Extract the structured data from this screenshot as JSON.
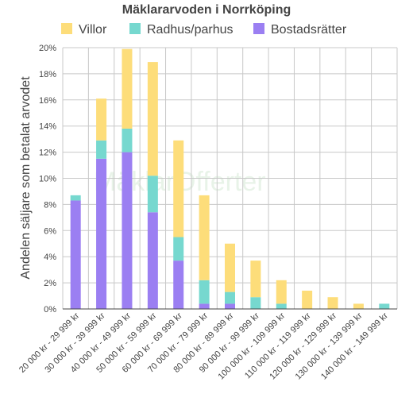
{
  "chart_data": {
    "type": "bar",
    "stacked": true,
    "title": "Mäklararvoden i Norrköping",
    "ylabel": "Andelen säljare som betalat arvodet",
    "ylim": [
      0,
      20
    ],
    "yticks": [
      0,
      2,
      4,
      6,
      8,
      10,
      12,
      14,
      16,
      18,
      20
    ],
    "ytick_format": "%",
    "grid": true,
    "legend_position": "top",
    "watermark": "MäklarOfferter",
    "categories": [
      "20 000 kr - 29 999 kr",
      "30 000 kr - 39 999 kr",
      "40 000 kr - 49 999 kr",
      "50 000 kr - 59 999 kr",
      "60 000 kr - 69 999 kr",
      "70 000 kr - 79 999 kr",
      "80 000 kr - 89 999 kr",
      "90 000 kr - 99 999 kr",
      "100 000 kr - 109 999 kr",
      "110 000 kr - 119 999 kr",
      "120 000 kr - 129 999 kr",
      "130 000 kr - 139 999 kr",
      "140 000 kr - 149 999 kr"
    ],
    "series": [
      {
        "name": "Bostadsrätter",
        "color": "#9b7ff2",
        "values": [
          8.3,
          11.5,
          12.0,
          7.4,
          3.7,
          0.4,
          0.4,
          0,
          0,
          0,
          0,
          0,
          0
        ]
      },
      {
        "name": "Radhus/parhus",
        "color": "#76d8cf",
        "values": [
          0.4,
          1.4,
          1.8,
          2.8,
          1.8,
          1.8,
          0.9,
          0.9,
          0.4,
          0,
          0,
          0,
          0.4
        ]
      },
      {
        "name": "Villor",
        "color": "#fddd7a",
        "values": [
          0,
          3.2,
          6.1,
          8.7,
          7.4,
          6.5,
          3.7,
          2.8,
          1.8,
          1.4,
          0.9,
          0.4,
          0
        ]
      }
    ],
    "legend_order": [
      "Villor",
      "Radhus/parhus",
      "Bostadsrätter"
    ]
  }
}
